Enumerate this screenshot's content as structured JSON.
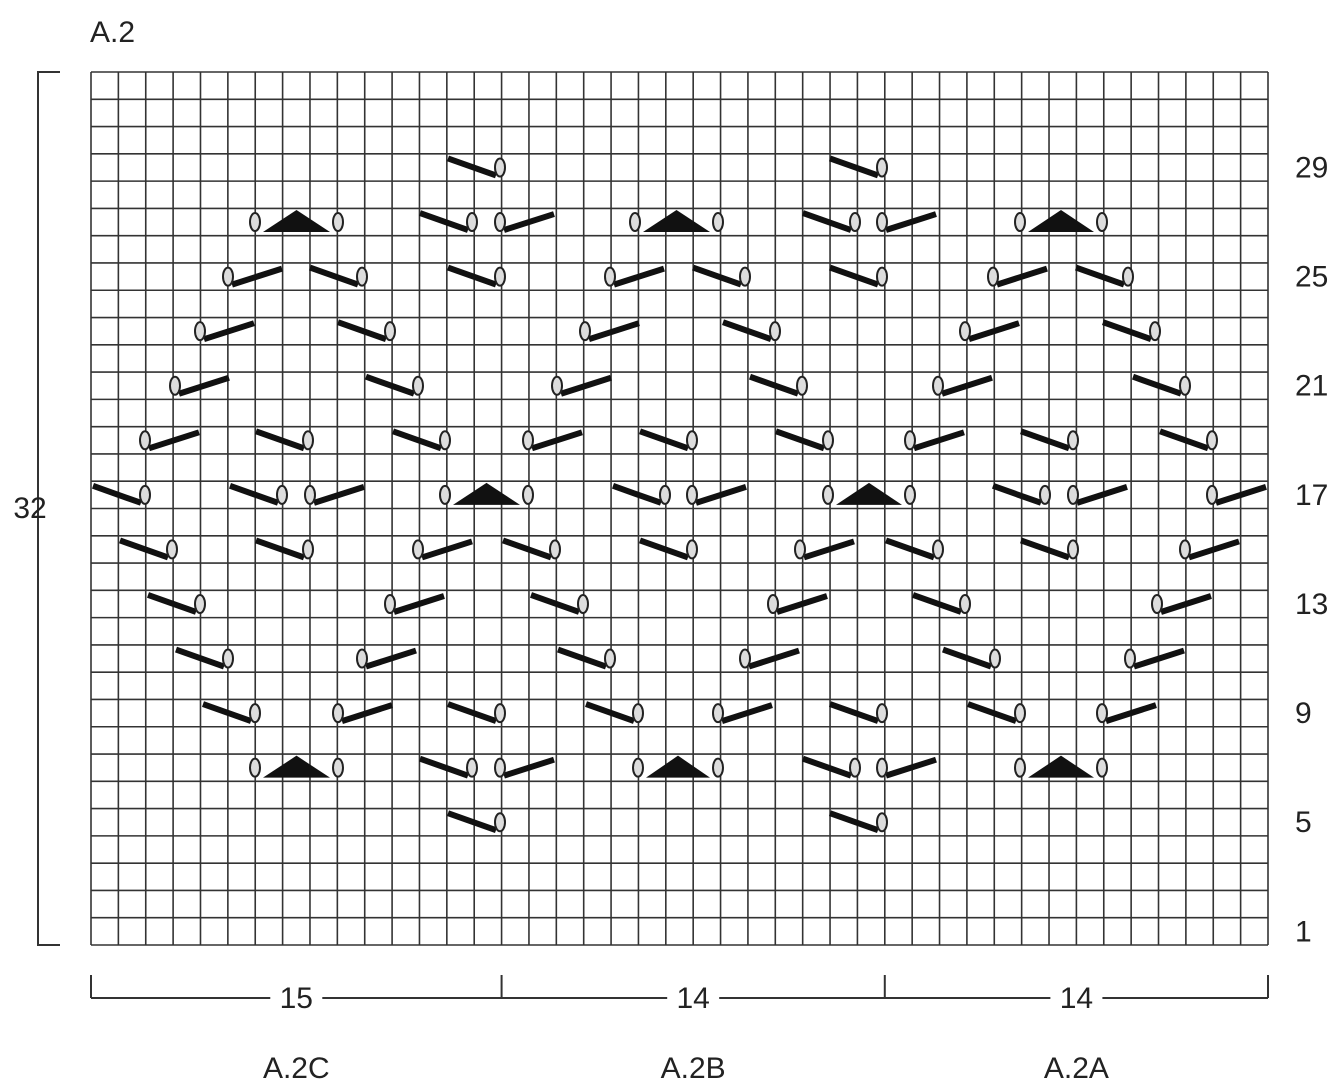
{
  "title": "A.2",
  "height_label": 32,
  "row_labels": [
    29,
    25,
    21,
    17,
    13,
    9,
    5,
    1
  ],
  "sections": [
    {
      "name": "A.2C",
      "stitches": 15
    },
    {
      "name": "A.2B",
      "stitches": 14
    },
    {
      "name": "A.2A",
      "stitches": 14
    }
  ]
}
